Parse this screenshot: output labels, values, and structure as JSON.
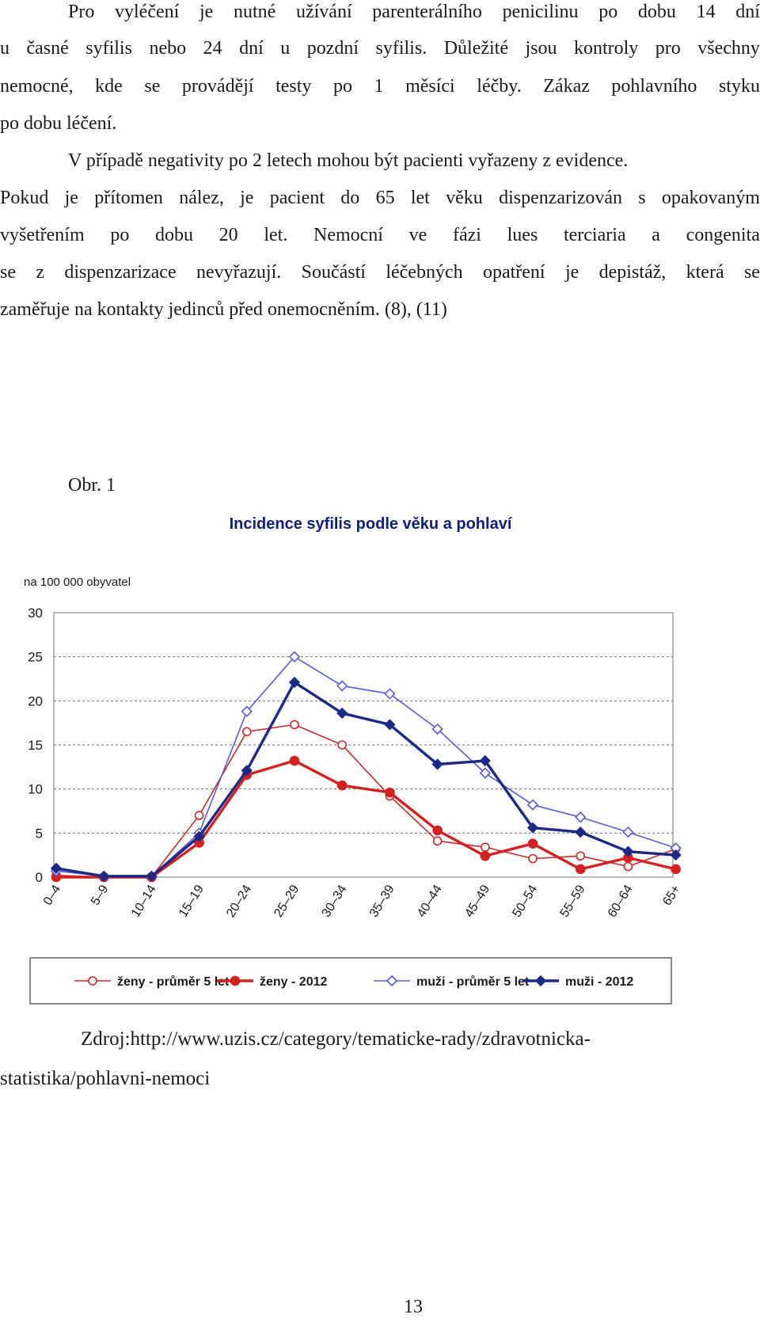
{
  "paragraph1": {
    "lines": [
      {
        "words": [
          "Pro",
          "vyléčení",
          "je",
          "nutné",
          "užívání",
          "parenterálního",
          "penicilinu",
          "po",
          "dobu",
          "14",
          "dní"
        ]
      },
      {
        "words": [
          "u",
          "časné",
          "syfilis",
          "nebo",
          "24",
          "dní",
          "u",
          "pozdní",
          "syfilis.",
          "Důležité",
          "jsou",
          "kontroly",
          "pro",
          "všechny"
        ]
      },
      {
        "words": [
          "nemocné,",
          "kde",
          "se",
          "provádějí",
          "testy",
          "po",
          "1",
          "měsíci",
          "léčby.",
          "Zákaz",
          "pohlavního",
          "styku"
        ]
      },
      {
        "text": "po dobu léčení."
      }
    ]
  },
  "paragraph2": {
    "lines": [
      {
        "text": "V případě negativity po 2 letech mohou být pacienti vyřazeny z evidence."
      },
      {
        "words": [
          "Pokud",
          "je",
          "přítomen",
          "nález,",
          "je",
          "pacient",
          "do",
          "65",
          "let",
          "věku",
          "dispenzarizován",
          "s",
          "opakovaným"
        ]
      },
      {
        "words": [
          "vyšetřením",
          "po",
          "dobu",
          "20",
          "let.",
          "Nemocní",
          "ve",
          "fázi",
          "lues",
          "terciaria",
          "a",
          "congenita"
        ]
      },
      {
        "words": [
          "se",
          "z",
          "dispenzarizace",
          "nevyřazují.",
          "Součástí",
          "léčebných",
          "opatření",
          "je",
          "depistáž,",
          "která",
          "se"
        ]
      },
      {
        "text": "zaměřuje na kontakty jedinců před onemocněním. (8), (11)"
      }
    ]
  },
  "figure_caption": "Obr. 1",
  "chart_data": {
    "type": "line",
    "title": "Incidence syfilis podle věku a pohlaví",
    "ylabel": "na 100 000 obyvatel",
    "xlabel": "",
    "ylim": [
      0,
      30
    ],
    "yticks": [
      0,
      5,
      10,
      15,
      20,
      25,
      30
    ],
    "categories": [
      "0–4",
      "5–9",
      "10–14",
      "15–19",
      "20–24",
      "25–29",
      "30–34",
      "35–39",
      "40–44",
      "45–49",
      "50–54",
      "55–59",
      "60–64",
      "65+"
    ],
    "grid": true,
    "legend_position": "bottom",
    "series": [
      {
        "name": "ženy - průměr 5 let",
        "color": "#c42b2b",
        "marker": "circle-open",
        "weight": "thin",
        "values": [
          0.2,
          0,
          0,
          7,
          16.5,
          17.3,
          15,
          9.2,
          4.1,
          3.4,
          2.1,
          2.4,
          1.2,
          3.2
        ]
      },
      {
        "name": "ženy - 2012",
        "color": "#d42020",
        "marker": "circle-filled",
        "weight": "thick",
        "values": [
          0,
          0,
          0,
          3.9,
          11.6,
          13.2,
          10.4,
          9.6,
          5.3,
          2.4,
          3.8,
          0.9,
          2.2,
          0.9
        ]
      },
      {
        "name": "muži - průměr 5 let",
        "color": "#5a5ad6",
        "marker": "diamond-open",
        "weight": "thin",
        "values": [
          0.7,
          0.1,
          0.1,
          5,
          18.8,
          25,
          21.7,
          20.8,
          16.8,
          11.8,
          8.2,
          6.8,
          5.1,
          3.3
        ]
      },
      {
        "name": "muži - 2012",
        "color": "#1c2a86",
        "marker": "diamond-filled",
        "weight": "thick",
        "values": [
          1,
          0.1,
          0.1,
          4.6,
          12.1,
          22.1,
          18.6,
          17.3,
          12.8,
          13.2,
          5.6,
          5.1,
          2.9,
          2.5
        ]
      }
    ]
  },
  "source": {
    "line1": "Zdroj:http://www.uzis.cz/category/tematicke-rady/zdravotnicka-",
    "line2": "statistika/pohlavni-nemoci"
  },
  "page_number": "13"
}
